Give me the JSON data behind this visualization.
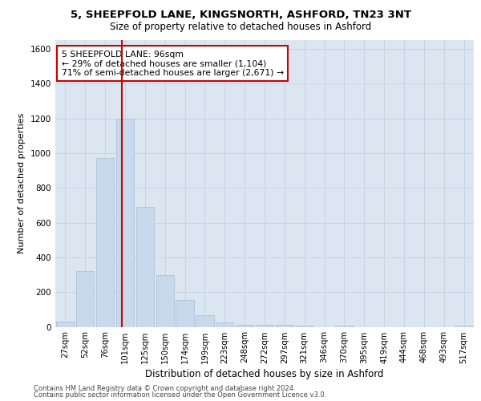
{
  "title_line1": "5, SHEEPFOLD LANE, KINGSNORTH, ASHFORD, TN23 3NT",
  "title_line2": "Size of property relative to detached houses in Ashford",
  "xlabel": "Distribution of detached houses by size in Ashford",
  "ylabel": "Number of detached properties",
  "footer_line1": "Contains HM Land Registry data © Crown copyright and database right 2024.",
  "footer_line2": "Contains public sector information licensed under the Open Government Licence v3.0.",
  "annotation_line1": "5 SHEEPFOLD LANE: 96sqm",
  "annotation_line2": "← 29% of detached houses are smaller (1,104)",
  "annotation_line3": "71% of semi-detached houses are larger (2,671) →",
  "bar_color": "#c9d9ed",
  "bar_edge_color": "#a8bdd4",
  "grid_color": "#c8d4e4",
  "annotation_box_edge_color": "#cc0000",
  "vline_color": "#cc0000",
  "background_color": "#dce6f0",
  "categories": [
    "27sqm",
    "52sqm",
    "76sqm",
    "101sqm",
    "125sqm",
    "150sqm",
    "174sqm",
    "199sqm",
    "223sqm",
    "248sqm",
    "272sqm",
    "297sqm",
    "321sqm",
    "346sqm",
    "370sqm",
    "395sqm",
    "419sqm",
    "444sqm",
    "468sqm",
    "493sqm",
    "517sqm"
  ],
  "values": [
    30,
    320,
    970,
    1200,
    690,
    300,
    155,
    65,
    25,
    13,
    13,
    13,
    5,
    0,
    5,
    0,
    0,
    0,
    0,
    0,
    5
  ],
  "vline_position": 2.82,
  "ylim": [
    0,
    1650
  ],
  "yticks": [
    0,
    200,
    400,
    600,
    800,
    1000,
    1200,
    1400,
    1600
  ]
}
